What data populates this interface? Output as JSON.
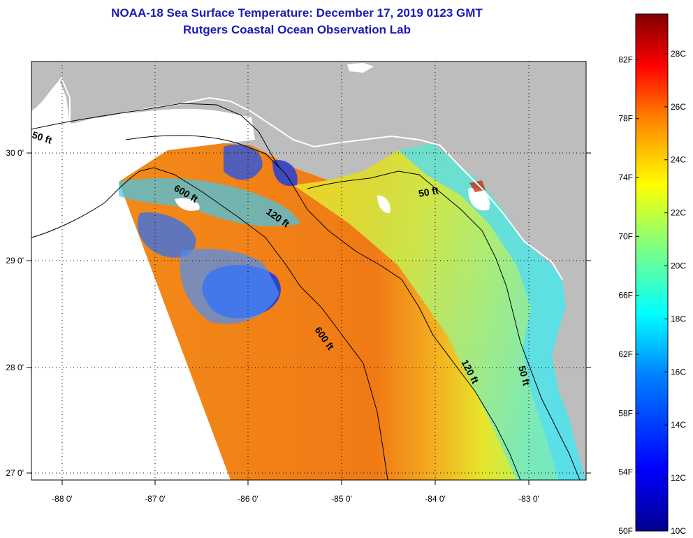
{
  "title": {
    "line1": "NOAA-18 Sea Surface Temperature:  December 17, 2019 0123 GMT",
    "line2": "Rutgers Coastal Ocean Observation Lab"
  },
  "map": {
    "x_ticks": [
      "-88 0'",
      "-87 0'",
      "-86 0'",
      "-85 0'",
      "-84 0'",
      "-83 0'"
    ],
    "y_ticks": [
      "30 0'",
      "29 0'",
      "28 0'",
      "27 0'"
    ],
    "lon_range": [
      -88.33,
      -82.38
    ],
    "lat_range": [
      26.98,
      30.85
    ],
    "colors": {
      "land": "#bdbdbd",
      "background": "#ffffff",
      "title": "#1b1bb0"
    }
  },
  "contours": [
    {
      "label": "50 ft"
    },
    {
      "label": "600 ft"
    },
    {
      "label": "120 ft"
    },
    {
      "label": "50 ft"
    },
    {
      "label": "600 ft"
    },
    {
      "label": "120 ft"
    },
    {
      "label": "50 ft"
    }
  ],
  "colorbar": {
    "fahrenheit": [
      "82F",
      "78F",
      "74F",
      "70F",
      "66F",
      "62F",
      "58F",
      "54F",
      "50F"
    ],
    "celsius": [
      "28C",
      "26C",
      "24C",
      "22C",
      "20C",
      "18C",
      "16C",
      "14C",
      "12C",
      "10C"
    ],
    "range_c": [
      10,
      29.5
    ],
    "gradient": [
      "#00008f",
      "#0000ff",
      "#0080ff",
      "#00ffff",
      "#80ff80",
      "#ffff00",
      "#ff8000",
      "#ff0000",
      "#800000"
    ]
  }
}
